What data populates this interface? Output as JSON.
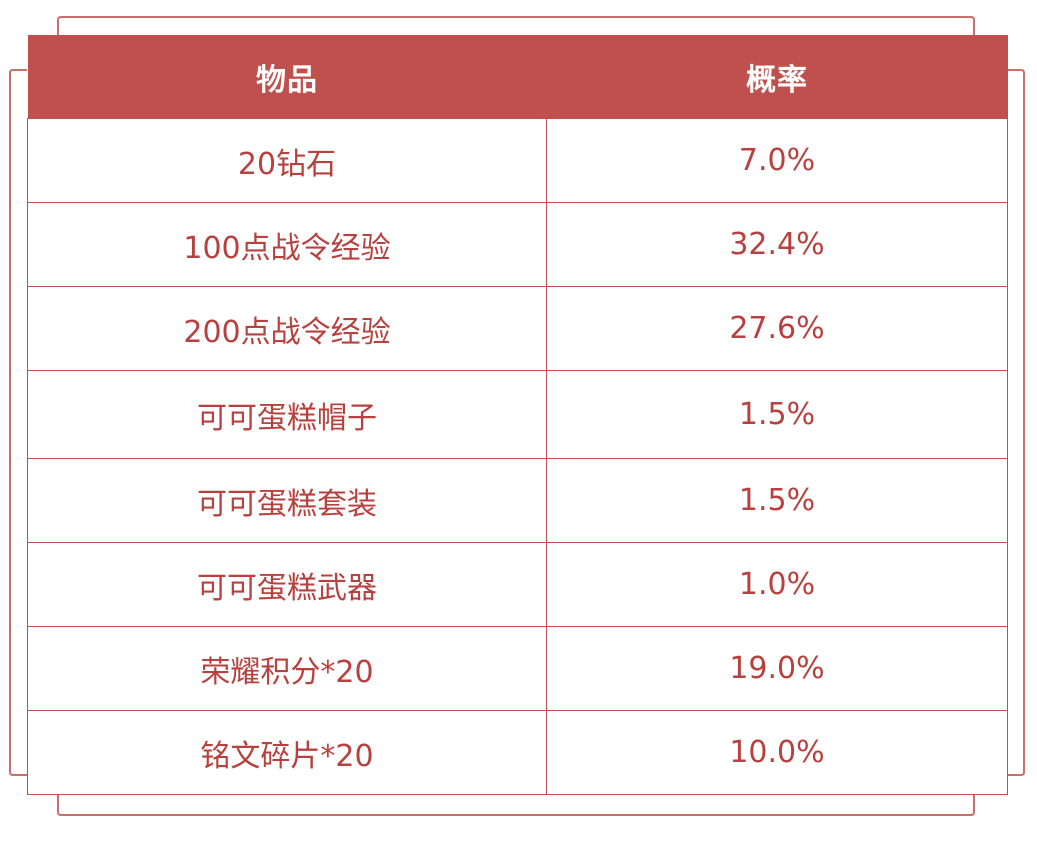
{
  "colors": {
    "header_bg": "#c0504d",
    "header_text": "#ffffff",
    "cell_text": "#b7413e",
    "border": "#c0504d",
    "frame": "#c9706c"
  },
  "table": {
    "headers": {
      "item": "物品",
      "rate": "概率"
    },
    "rows": [
      {
        "item": "20钻石",
        "rate": "7.0%"
      },
      {
        "item": "100点战令经验",
        "rate": "32.4%"
      },
      {
        "item": "200点战令经验",
        "rate": "27.6%"
      },
      {
        "item": "可可蛋糕帽子",
        "rate": "1.5%"
      },
      {
        "item": "可可蛋糕套装",
        "rate": "1.5%"
      },
      {
        "item": "可可蛋糕武器",
        "rate": "1.0%"
      },
      {
        "item": "荣耀积分*20",
        "rate": "19.0%"
      },
      {
        "item": "铭文碎片*20",
        "rate": "10.0%"
      }
    ]
  }
}
